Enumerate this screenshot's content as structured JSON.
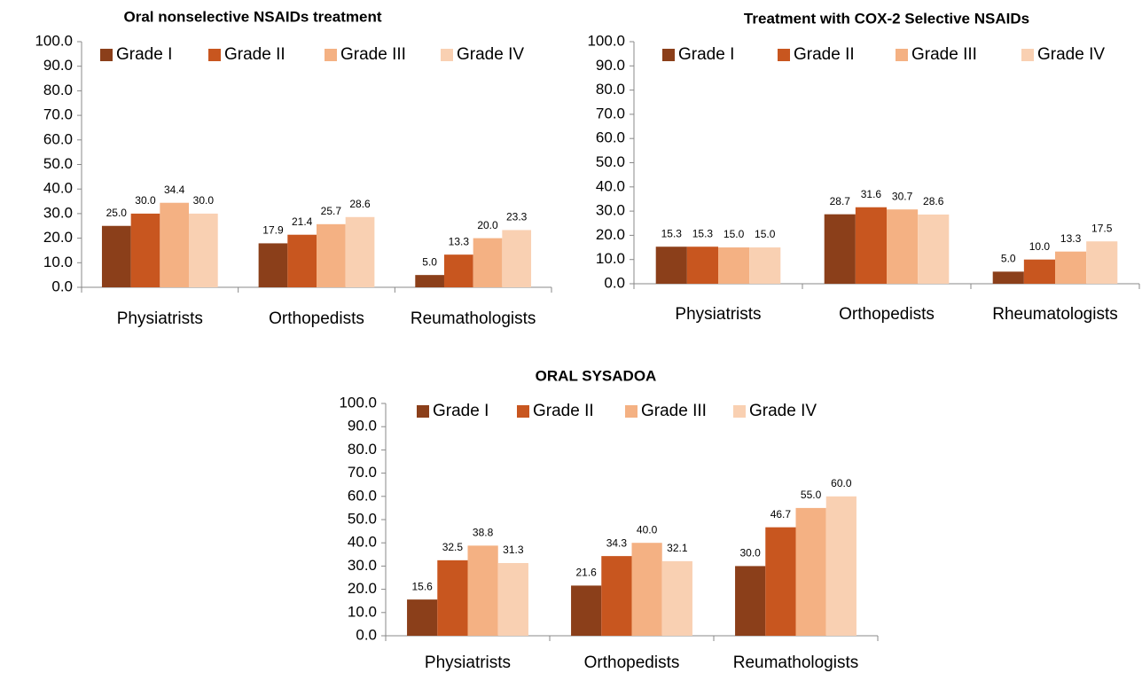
{
  "chart_data": [
    {
      "type": "bar",
      "title": "Oral nonselective NSAIDs treatment",
      "categories": [
        "Physiatrists",
        "Orthopedists",
        "Reumathologists"
      ],
      "series": [
        {
          "name": "Grade I",
          "color": "#8b3f1a",
          "values": [
            25.0,
            17.9,
            5.0
          ],
          "value_labels": [
            "25.0",
            "17.9",
            "5.0"
          ]
        },
        {
          "name": "Grade II",
          "color": "#c8561f",
          "values": [
            30.0,
            21.4,
            13.3
          ],
          "value_labels": [
            "30.0",
            "21.4",
            "13.3"
          ]
        },
        {
          "name": "Grade III",
          "color": "#f4b183",
          "values": [
            34.4,
            25.7,
            20.0
          ],
          "value_labels": [
            "34.4",
            "25.7",
            "20.0"
          ]
        },
        {
          "name": "Grade IV",
          "color": "#f9d0b2",
          "values": [
            30.0,
            28.6,
            23.3
          ],
          "value_labels": [
            "30.0",
            "28.6",
            "23.3"
          ]
        }
      ],
      "ylim": [
        0,
        100
      ],
      "yticks": [
        {
          "value": 0,
          "label": "0.0"
        },
        {
          "value": 10,
          "label": "10.0"
        },
        {
          "value": 20,
          "label": "20.0"
        },
        {
          "value": 30,
          "label": "30.0"
        },
        {
          "value": 40,
          "label": "40.0"
        },
        {
          "value": 50,
          "label": "50.0"
        },
        {
          "value": 60,
          "label": "60.0"
        },
        {
          "value": 70,
          "label": "70.0"
        },
        {
          "value": 80,
          "label": "80.0"
        },
        {
          "value": 90,
          "label": "90.0"
        },
        {
          "value": 100,
          "label": "100.0"
        }
      ]
    },
    {
      "type": "bar",
      "title": "Treatment with COX-2 Selective NSAIDs",
      "categories": [
        "Physiatrists",
        "Orthopedists",
        "Rheumatologists"
      ],
      "series": [
        {
          "name": "Grade I",
          "color": "#8b3f1a",
          "values": [
            15.3,
            28.7,
            5.0
          ],
          "value_labels": [
            "15.3",
            "28.7",
            "5.0"
          ]
        },
        {
          "name": "Grade II",
          "color": "#c8561f",
          "values": [
            15.3,
            31.6,
            10.0
          ],
          "value_labels": [
            "15.3",
            "31.6",
            "10.0"
          ]
        },
        {
          "name": "Grade III",
          "color": "#f4b183",
          "values": [
            15.0,
            30.7,
            13.3
          ],
          "value_labels": [
            "15.0",
            "30.7",
            "13.3"
          ]
        },
        {
          "name": "Grade IV",
          "color": "#f9d0b2",
          "values": [
            15.0,
            28.6,
            17.5
          ],
          "value_labels": [
            "15.0",
            "28.6",
            "17.5"
          ]
        }
      ],
      "ylim": [
        0,
        100
      ],
      "yticks": [
        {
          "value": 0,
          "label": "0.0"
        },
        {
          "value": 10,
          "label": "10.0"
        },
        {
          "value": 20,
          "label": "20.0"
        },
        {
          "value": 30,
          "label": "30.0"
        },
        {
          "value": 40,
          "label": "40.0"
        },
        {
          "value": 50,
          "label": "50.0"
        },
        {
          "value": 60,
          "label": "60.0"
        },
        {
          "value": 70,
          "label": "70.0"
        },
        {
          "value": 80,
          "label": "80.0"
        },
        {
          "value": 90,
          "label": "90.0"
        },
        {
          "value": 100,
          "label": "100.0"
        }
      ]
    },
    {
      "type": "bar",
      "title": "ORAL SYSADOA",
      "categories": [
        "Physiatrists",
        "Orthopedists",
        "Reumathologists"
      ],
      "series": [
        {
          "name": "Grade I",
          "color": "#8b3f1a",
          "values": [
            15.6,
            21.6,
            30.0
          ],
          "value_labels": [
            "15.6",
            "21.6",
            "30.0"
          ]
        },
        {
          "name": "Grade II",
          "color": "#c8561f",
          "values": [
            32.5,
            34.3,
            46.7
          ],
          "value_labels": [
            "32.5",
            "34.3",
            "46.7"
          ]
        },
        {
          "name": "Grade III",
          "color": "#f4b183",
          "values": [
            38.8,
            40.0,
            55.0
          ],
          "value_labels": [
            "38.8",
            "40.0",
            "55.0"
          ]
        },
        {
          "name": "Grade IV",
          "color": "#f9d0b2",
          "values": [
            31.3,
            32.1,
            60.0
          ],
          "value_labels": [
            "31.3",
            "32.1",
            "60.0"
          ]
        }
      ],
      "ylim": [
        0,
        100
      ],
      "yticks": [
        {
          "value": 0,
          "label": "0.0"
        },
        {
          "value": 10,
          "label": "10.0"
        },
        {
          "value": 20,
          "label": "20.0"
        },
        {
          "value": 30,
          "label": "30.0"
        },
        {
          "value": 40,
          "label": "40.0"
        },
        {
          "value": 50,
          "label": "50.0"
        },
        {
          "value": 60,
          "label": "60.0"
        },
        {
          "value": 70,
          "label": "70.0"
        },
        {
          "value": 80,
          "label": "80.0"
        },
        {
          "value": 90,
          "label": "90.0"
        },
        {
          "value": 100,
          "label": "100.0"
        }
      ]
    }
  ]
}
